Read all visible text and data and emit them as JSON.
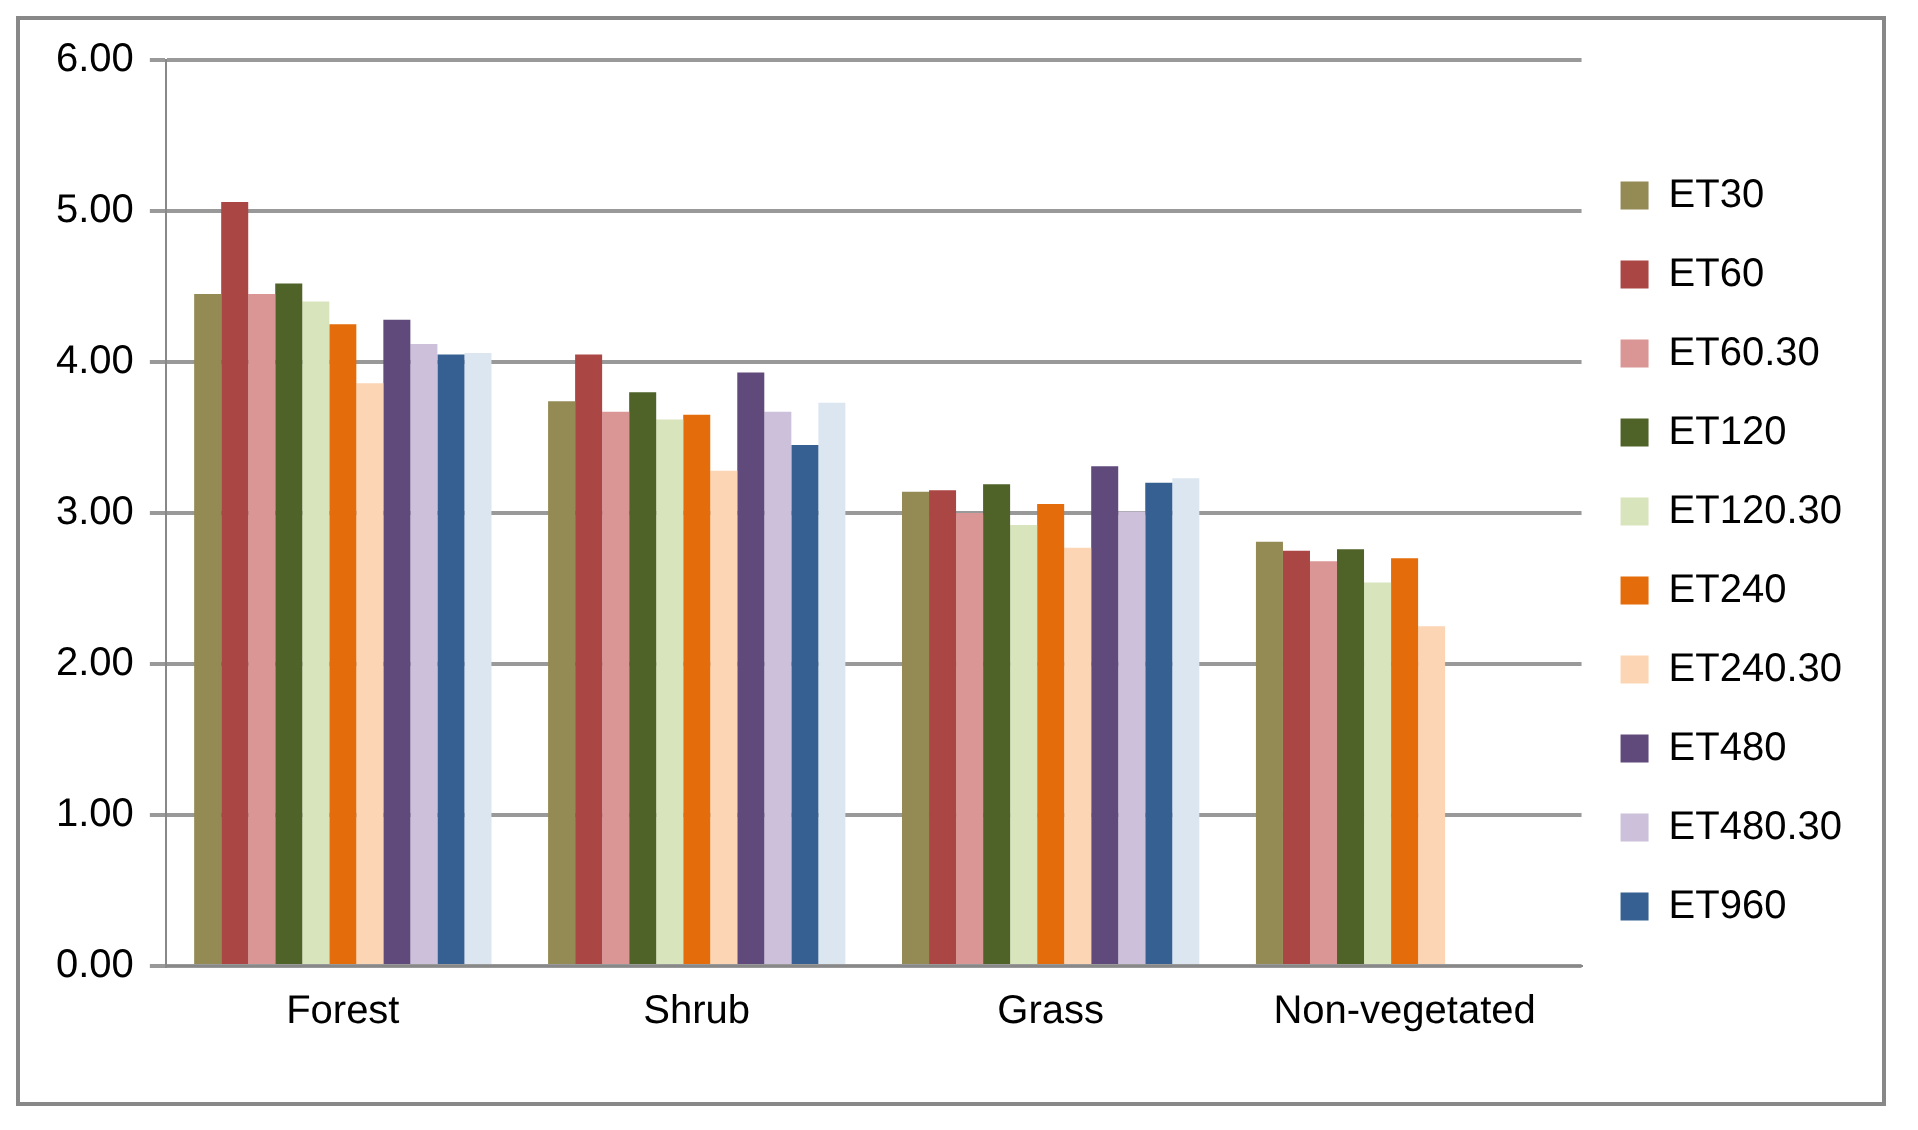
{
  "chart_data": {
    "type": "bar",
    "categories": [
      "Forest",
      "Shrub",
      "Grass",
      "Non-vegetated"
    ],
    "ylim": [
      0,
      6
    ],
    "yticks": [
      {
        "value": 0,
        "label": "0.00"
      },
      {
        "value": 1,
        "label": "1.00"
      },
      {
        "value": 2,
        "label": "2.00"
      },
      {
        "value": 3,
        "label": "3.00"
      },
      {
        "value": 4,
        "label": "4.00"
      },
      {
        "value": 5,
        "label": "5.00"
      },
      {
        "value": 6,
        "label": "6.00"
      }
    ],
    "grid": "y",
    "legend": "right",
    "series": [
      {
        "name": "ET30",
        "color": "#948a54",
        "values": [
          4.45,
          3.74,
          3.14,
          2.81
        ]
      },
      {
        "name": "ET60",
        "color": "#aa4643",
        "values": [
          5.06,
          4.05,
          3.15,
          2.75
        ]
      },
      {
        "name": "ET60.30",
        "color": "#da9694",
        "values": [
          4.45,
          3.67,
          3.0,
          2.68
        ]
      },
      {
        "name": "ET120",
        "color": "#4f6228",
        "values": [
          4.52,
          3.8,
          3.19,
          2.76
        ]
      },
      {
        "name": "ET120.30",
        "color": "#d8e4bc",
        "values": [
          4.4,
          3.62,
          2.92,
          2.54
        ]
      },
      {
        "name": "ET240",
        "color": "#e46c0a",
        "values": [
          4.25,
          3.65,
          3.06,
          2.7
        ]
      },
      {
        "name": "ET240.30",
        "color": "#fcd5b4",
        "values": [
          3.86,
          3.28,
          2.77,
          2.25
        ]
      },
      {
        "name": "ET480",
        "color": "#604a7b",
        "values": [
          4.28,
          3.93,
          3.31,
          null
        ]
      },
      {
        "name": "ET480.30",
        "color": "#ccc0da",
        "values": [
          4.12,
          3.67,
          3.01,
          null
        ]
      },
      {
        "name": "ET960",
        "color": "#366092",
        "values": [
          4.05,
          3.45,
          3.2,
          null
        ]
      },
      {
        "color": "#dce6f1",
        "values": [
          4.06,
          3.73,
          3.23,
          null
        ]
      }
    ]
  }
}
